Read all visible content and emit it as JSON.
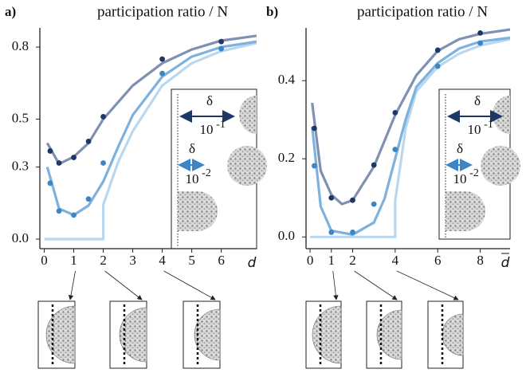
{
  "chart_data": [
    {
      "type": "line",
      "label": "a)",
      "title": "participation ratio / N",
      "xlabel": "d",
      "xlim": [
        -0.15,
        7.2
      ],
      "ylim": [
        -0.04,
        0.88
      ],
      "xticks": [
        0,
        1,
        2,
        3,
        4,
        5,
        6
      ],
      "yticks": [
        {
          "value": 0,
          "label": "0.0"
        },
        0.3,
        0.5,
        0.8
      ],
      "annotations": [
        "δ",
        "10",
        "-1",
        "δ",
        "10",
        "-2"
      ],
      "series": [
        {
          "style": "line",
          "color": "#b9d8ef",
          "x": [
            0,
            2,
            2,
            2.5,
            3,
            4,
            5,
            6,
            7.2
          ],
          "values": [
            0,
            0,
            0.143,
            0.32,
            0.45,
            0.64,
            0.733,
            0.783,
            0.817
          ]
        },
        {
          "style": "line",
          "color": "#7fb1dd",
          "x": [
            0.1,
            0.5,
            1,
            1.5,
            2,
            2.5,
            3,
            4,
            5,
            6,
            7.2
          ],
          "values": [
            0.3,
            0.127,
            0.1,
            0.14,
            0.24,
            0.383,
            0.517,
            0.677,
            0.76,
            0.8,
            0.823
          ]
        },
        {
          "style": "line",
          "color": "#8090b3",
          "x": [
            0.1,
            0.5,
            1,
            1.5,
            2,
            3,
            4,
            5,
            6,
            7.2
          ],
          "values": [
            0.4,
            0.313,
            0.343,
            0.4,
            0.5,
            0.64,
            0.733,
            0.79,
            0.827,
            0.847
          ]
        },
        {
          "style": "points",
          "color": "#3a86c6",
          "x": [
            0.2,
            0.5,
            1,
            1.5,
            2,
            4,
            6
          ],
          "values": [
            0.233,
            0.117,
            0.1,
            0.167,
            0.317,
            0.69,
            0.793
          ]
        },
        {
          "style": "points",
          "color": "#1d3766",
          "x": [
            0.2,
            0.5,
            1,
            1.5,
            2,
            4,
            6
          ],
          "values": [
            0.367,
            0.317,
            0.34,
            0.407,
            0.51,
            0.75,
            0.823
          ]
        }
      ]
    },
    {
      "type": "line",
      "label": "b)",
      "title": "participation ratio / N",
      "xlabel": "d",
      "xlim": [
        -0.19,
        9.4
      ],
      "ylim": [
        -0.03,
        0.535
      ],
      "xticks": [
        0,
        1,
        2,
        4,
        6,
        8
      ],
      "yticks": [
        {
          "value": 0,
          "label": "0.0"
        },
        0.2,
        0.4
      ],
      "annotations": [
        "δ",
        "10",
        "-1",
        "δ",
        "10",
        "-2"
      ],
      "series": [
        {
          "style": "line",
          "color": "#b9d8ef",
          "x": [
            0,
            4,
            4,
            4.5,
            5,
            6,
            7,
            8,
            9.4
          ],
          "values": [
            0,
            0,
            0.092,
            0.28,
            0.373,
            0.435,
            0.469,
            0.49,
            0.506
          ]
        },
        {
          "style": "line",
          "color": "#7fb1dd",
          "x": [
            0.1,
            0.5,
            1,
            2,
            3,
            3.5,
            4,
            4.5,
            5,
            6,
            7,
            8,
            9.4
          ],
          "values": [
            0.282,
            0.078,
            0.016,
            0.006,
            0.037,
            0.098,
            0.2,
            0.302,
            0.384,
            0.445,
            0.482,
            0.5,
            0.51
          ]
        },
        {
          "style": "line",
          "color": "#8090b3",
          "x": [
            0.1,
            0.5,
            1,
            1.5,
            2,
            3,
            4,
            5,
            6,
            7,
            8,
            9.4
          ],
          "values": [
            0.343,
            0.169,
            0.108,
            0.084,
            0.094,
            0.18,
            0.312,
            0.414,
            0.476,
            0.506,
            0.52,
            0.531
          ]
        },
        {
          "style": "points",
          "color": "#3a86c6",
          "x": [
            0.2,
            1,
            2,
            3,
            4,
            6,
            8
          ],
          "values": [
            0.182,
            0.012,
            0.012,
            0.084,
            0.224,
            0.437,
            0.496
          ]
        },
        {
          "style": "points",
          "color": "#1d3766",
          "x": [
            0.2,
            1,
            2,
            3,
            4,
            6,
            8
          ],
          "values": [
            0.278,
            0.1,
            0.094,
            0.184,
            0.318,
            0.478,
            0.522
          ]
        }
      ]
    }
  ]
}
